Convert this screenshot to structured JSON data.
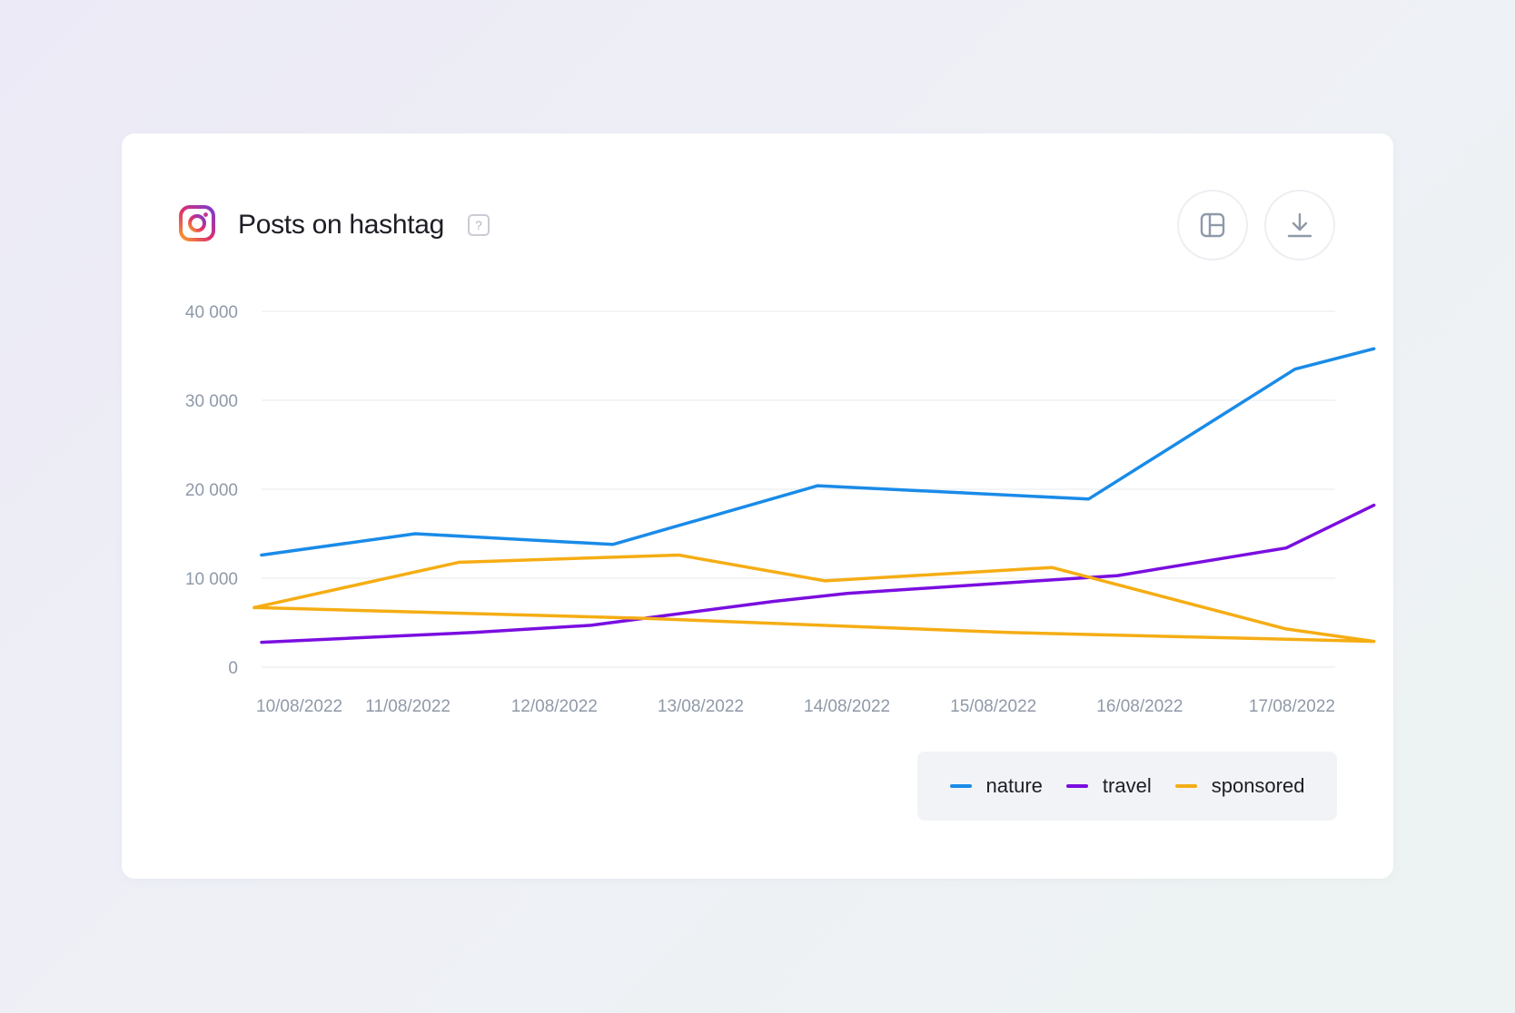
{
  "card": {
    "title": "Posts on hashtag",
    "help_glyph": "?",
    "icons": [
      "instagram-icon",
      "help-icon",
      "layout-icon",
      "download-icon"
    ]
  },
  "colors": {
    "nature": "#1a8be8",
    "travel": "#7a0ee0",
    "sponsored": "#f5ad14",
    "grid": "#eef0f3",
    "tick": "#8f99a8"
  },
  "chart_data": {
    "type": "line",
    "categories": [
      "10/08/2022",
      "11/08/2022",
      "12/08/2022",
      "13/08/2022",
      "14/08/2022",
      "15/08/2022",
      "16/08/2022",
      "17/08/2022"
    ],
    "y_ticks": [
      0,
      10000,
      20000,
      30000,
      40000
    ],
    "y_tick_labels": [
      "0",
      "10 000",
      "20 000",
      "30 000",
      "40 000"
    ],
    "ylim": [
      0,
      40000
    ],
    "grid": true,
    "legend_position": "bottom-right",
    "series": [
      {
        "name": "nature",
        "points": [
          [
            0.0,
            12600
          ],
          [
            1.05,
            15000
          ],
          [
            2.4,
            13800
          ],
          [
            3.8,
            20400
          ],
          [
            5.65,
            18900
          ],
          [
            7.06,
            33500
          ],
          [
            7.6,
            35800
          ]
        ]
      },
      {
        "name": "travel",
        "points": [
          [
            0.0,
            2800
          ],
          [
            1.45,
            3900
          ],
          [
            2.25,
            4700
          ],
          [
            3.5,
            7400
          ],
          [
            4.0,
            8300
          ],
          [
            5.85,
            10300
          ],
          [
            7.0,
            13400
          ],
          [
            7.6,
            18200
          ]
        ]
      },
      {
        "name": "sponsored",
        "points": [
          [
            -0.05,
            6700
          ],
          [
            1.35,
            11800
          ],
          [
            2.85,
            12600
          ],
          [
            3.85,
            9700
          ],
          [
            5.4,
            11200
          ],
          [
            7.0,
            4300
          ],
          [
            7.6,
            2900
          ],
          [
            5.1,
            3900
          ],
          [
            2.6,
            5500
          ],
          [
            -0.05,
            6700
          ]
        ]
      }
    ]
  }
}
